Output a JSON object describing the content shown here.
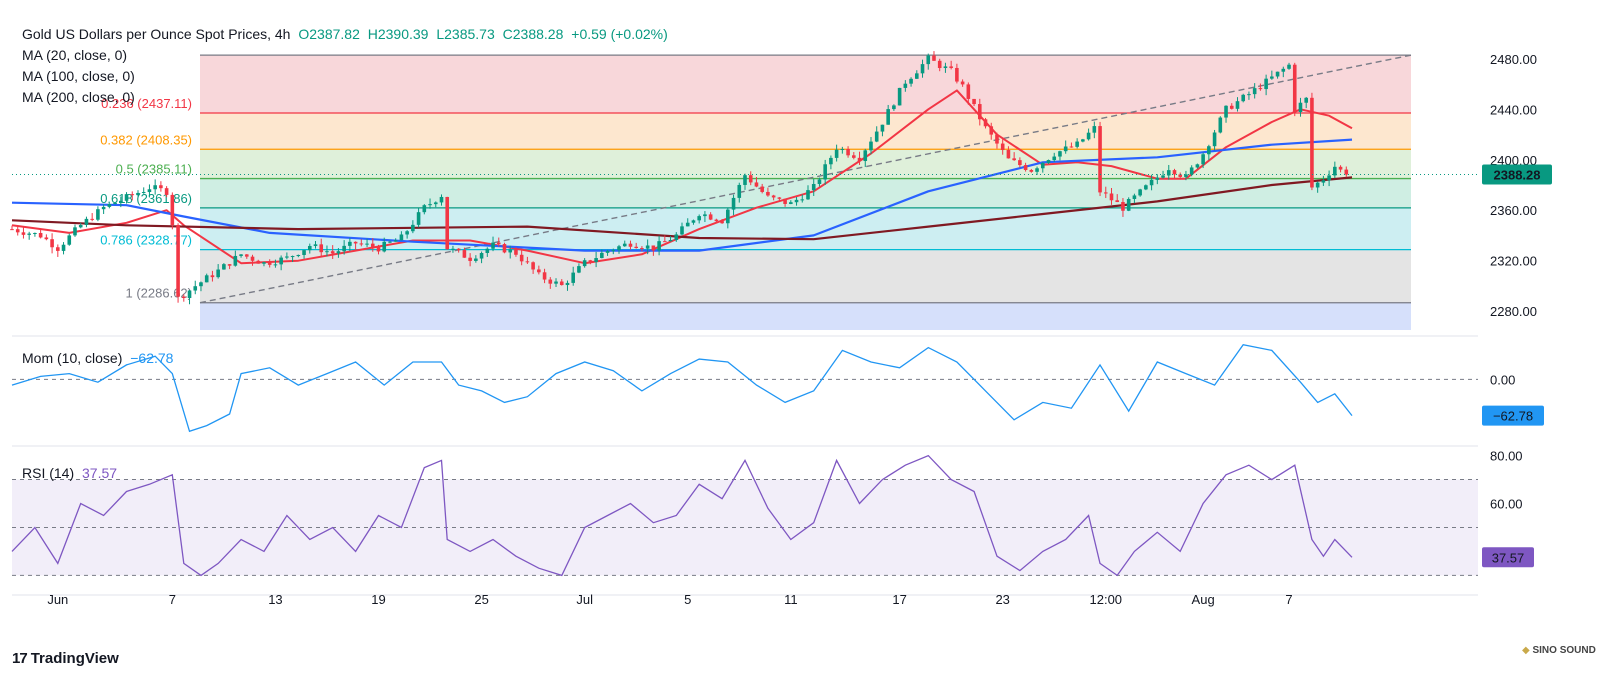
{
  "legend": {
    "title": "Gold US Dollars per Ounce Spot Prices, 4h",
    "open": "O2387.82",
    "high": "H2390.39",
    "low": "L2385.73",
    "close": "C2388.28",
    "change": "+0.59 (+0.02%)",
    "ma20": "MA (20, close, 0)",
    "ma100": "MA (100, close, 0)",
    "ma200": "MA (200, close, 0)"
  },
  "momentum_label": "Mom (10, close)",
  "momentum_value": "−62.78",
  "rsi_label": "RSI (14)",
  "rsi_value": "37.57",
  "price_badge": "2388.28",
  "brand": "TradingView",
  "watermark": "SINO SOUND",
  "colors": {
    "up": "#089981",
    "down": "#f23645",
    "ma20": "#f23645",
    "ma100": "#2962ff",
    "ma200": "#801922",
    "momentum": "#2196f3",
    "rsi": "#7e57c2",
    "price_badge": "#089981"
  },
  "chart_data": {
    "type": "candlestick",
    "timeframe": "4h",
    "ylim": [
      2265,
      2495
    ],
    "yticks": [
      "2480.00",
      "2440.00",
      "2400.00",
      "2360.00",
      "2320.00",
      "2280.00"
    ],
    "xticks": [
      "Jun",
      "7",
      "13",
      "19",
      "25",
      "Jul",
      "5",
      "11",
      "17",
      "23",
      "12:00",
      "Aug",
      "7"
    ],
    "fibonacci": [
      {
        "level": "0",
        "price": 2483,
        "label": ""
      },
      {
        "level": "0.236",
        "price": 2437.11,
        "label": "0.236 (2437.11)"
      },
      {
        "level": "0.382",
        "price": 2408.35,
        "label": "0.382 (2408.35)"
      },
      {
        "level": "0.5",
        "price": 2385.11,
        "label": "0.5 (2385.11)"
      },
      {
        "level": "0.618",
        "price": 2361.86,
        "label": "0.618 (2361.86)"
      },
      {
        "level": "0.786",
        "price": 2328.77,
        "label": "0.786 (2328.77)"
      },
      {
        "level": "1",
        "price": 2286.62,
        "label": "1 (2286.62)"
      }
    ],
    "close_path": [
      [
        0,
        2345
      ],
      [
        5,
        2340
      ],
      [
        8,
        2330
      ],
      [
        12,
        2348
      ],
      [
        16,
        2362
      ],
      [
        20,
        2370
      ],
      [
        24,
        2378
      ],
      [
        27,
        2375
      ],
      [
        28,
        2350
      ],
      [
        29,
        2290
      ],
      [
        32,
        2300
      ],
      [
        36,
        2312
      ],
      [
        40,
        2325
      ],
      [
        44,
        2318
      ],
      [
        48,
        2322
      ],
      [
        52,
        2332
      ],
      [
        56,
        2326
      ],
      [
        60,
        2334
      ],
      [
        64,
        2330
      ],
      [
        68,
        2338
      ],
      [
        72,
        2362
      ],
      [
        75,
        2372
      ],
      [
        76,
        2330
      ],
      [
        80,
        2322
      ],
      [
        84,
        2332
      ],
      [
        88,
        2326
      ],
      [
        92,
        2308
      ],
      [
        96,
        2300
      ],
      [
        100,
        2318
      ],
      [
        104,
        2328
      ],
      [
        108,
        2334
      ],
      [
        112,
        2330
      ],
      [
        116,
        2340
      ],
      [
        120,
        2358
      ],
      [
        124,
        2352
      ],
      [
        128,
        2388
      ],
      [
        132,
        2370
      ],
      [
        136,
        2365
      ],
      [
        140,
        2378
      ],
      [
        144,
        2410
      ],
      [
        148,
        2402
      ],
      [
        152,
        2430
      ],
      [
        156,
        2462
      ],
      [
        160,
        2480
      ],
      [
        164,
        2470
      ],
      [
        166,
        2458
      ],
      [
        170,
        2425
      ],
      [
        174,
        2400
      ],
      [
        178,
        2392
      ],
      [
        182,
        2405
      ],
      [
        186,
        2412
      ],
      [
        189,
        2425
      ],
      [
        190,
        2375
      ],
      [
        194,
        2362
      ],
      [
        198,
        2378
      ],
      [
        202,
        2394
      ],
      [
        205,
        2386
      ],
      [
        208,
        2405
      ],
      [
        212,
        2440
      ],
      [
        216,
        2452
      ],
      [
        220,
        2465
      ],
      [
        223,
        2475
      ],
      [
        224,
        2440
      ],
      [
        226,
        2448
      ],
      [
        227,
        2378
      ],
      [
        229,
        2385
      ],
      [
        231,
        2395
      ],
      [
        233,
        2388
      ]
    ],
    "series": [
      {
        "name": "MA (20, close, 0)",
        "color": "#f23645",
        "points": [
          [
            0,
            2348
          ],
          [
            10,
            2342
          ],
          [
            20,
            2350
          ],
          [
            27,
            2360
          ],
          [
            30,
            2348
          ],
          [
            40,
            2318
          ],
          [
            50,
            2320
          ],
          [
            60,
            2328
          ],
          [
            70,
            2336
          ],
          [
            80,
            2336
          ],
          [
            90,
            2328
          ],
          [
            100,
            2318
          ],
          [
            110,
            2325
          ],
          [
            120,
            2345
          ],
          [
            130,
            2362
          ],
          [
            140,
            2375
          ],
          [
            150,
            2405
          ],
          [
            160,
            2440
          ],
          [
            165,
            2455
          ],
          [
            172,
            2420
          ],
          [
            180,
            2396
          ],
          [
            186,
            2398
          ],
          [
            192,
            2395
          ],
          [
            200,
            2385
          ],
          [
            205,
            2385
          ],
          [
            212,
            2410
          ],
          [
            220,
            2430
          ],
          [
            225,
            2440
          ],
          [
            230,
            2435
          ],
          [
            234,
            2425
          ]
        ]
      },
      {
        "name": "MA (100, close, 0)",
        "color": "#2962ff",
        "points": [
          [
            0,
            2366
          ],
          [
            20,
            2364
          ],
          [
            30,
            2355
          ],
          [
            45,
            2342
          ],
          [
            70,
            2335
          ],
          [
            100,
            2328
          ],
          [
            120,
            2328
          ],
          [
            140,
            2340
          ],
          [
            160,
            2375
          ],
          [
            180,
            2398
          ],
          [
            200,
            2402
          ],
          [
            220,
            2412
          ],
          [
            234,
            2416
          ]
        ]
      },
      {
        "name": "MA (200, close, 0)",
        "color": "#801922",
        "points": [
          [
            0,
            2352
          ],
          [
            20,
            2348
          ],
          [
            50,
            2345
          ],
          [
            90,
            2347
          ],
          [
            120,
            2338
          ],
          [
            140,
            2337
          ],
          [
            160,
            2347
          ],
          [
            180,
            2357
          ],
          [
            200,
            2367
          ],
          [
            220,
            2380
          ],
          [
            234,
            2386
          ]
        ]
      }
    ],
    "momentum": {
      "name": "Mom (10, close)",
      "ylim": [
        -105,
        75
      ],
      "ytick": "0.00",
      "last": -62.78,
      "points": [
        [
          0,
          -10
        ],
        [
          5,
          5
        ],
        [
          10,
          10
        ],
        [
          15,
          -5
        ],
        [
          20,
          25
        ],
        [
          25,
          40
        ],
        [
          28,
          10
        ],
        [
          31,
          -90
        ],
        [
          34,
          -80
        ],
        [
          38,
          -60
        ],
        [
          40,
          10
        ],
        [
          45,
          20
        ],
        [
          50,
          -10
        ],
        [
          55,
          10
        ],
        [
          60,
          30
        ],
        [
          65,
          -10
        ],
        [
          70,
          30
        ],
        [
          75,
          30
        ],
        [
          78,
          -10
        ],
        [
          82,
          -20
        ],
        [
          86,
          -40
        ],
        [
          90,
          -30
        ],
        [
          95,
          10
        ],
        [
          100,
          30
        ],
        [
          105,
          15
        ],
        [
          110,
          -20
        ],
        [
          115,
          10
        ],
        [
          120,
          35
        ],
        [
          125,
          30
        ],
        [
          130,
          -10
        ],
        [
          135,
          -40
        ],
        [
          140,
          -20
        ],
        [
          145,
          50
        ],
        [
          150,
          30
        ],
        [
          155,
          20
        ],
        [
          160,
          55
        ],
        [
          165,
          30
        ],
        [
          170,
          -20
        ],
        [
          175,
          -70
        ],
        [
          180,
          -40
        ],
        [
          185,
          -50
        ],
        [
          190,
          25
        ],
        [
          195,
          -55
        ],
        [
          200,
          30
        ],
        [
          205,
          10
        ],
        [
          210,
          -10
        ],
        [
          215,
          60
        ],
        [
          220,
          50
        ],
        [
          225,
          -5
        ],
        [
          228,
          -40
        ],
        [
          231,
          -25
        ],
        [
          234,
          -62.78
        ]
      ]
    },
    "rsi": {
      "name": "RSI (14)",
      "ylim": [
        26,
        84
      ],
      "yticks": [
        "80.00",
        "60.00"
      ],
      "bands": [
        70,
        50,
        30
      ],
      "last": 37.57,
      "points": [
        [
          0,
          40
        ],
        [
          4,
          50
        ],
        [
          8,
          35
        ],
        [
          12,
          60
        ],
        [
          16,
          55
        ],
        [
          20,
          65
        ],
        [
          24,
          68
        ],
        [
          28,
          72
        ],
        [
          30,
          35
        ],
        [
          33,
          30
        ],
        [
          36,
          35
        ],
        [
          40,
          45
        ],
        [
          44,
          40
        ],
        [
          48,
          55
        ],
        [
          52,
          45
        ],
        [
          56,
          50
        ],
        [
          60,
          40
        ],
        [
          64,
          55
        ],
        [
          68,
          50
        ],
        [
          72,
          75
        ],
        [
          75,
          78
        ],
        [
          76,
          45
        ],
        [
          80,
          40
        ],
        [
          84,
          45
        ],
        [
          88,
          38
        ],
        [
          92,
          33
        ],
        [
          96,
          30
        ],
        [
          100,
          50
        ],
        [
          104,
          55
        ],
        [
          108,
          60
        ],
        [
          112,
          52
        ],
        [
          116,
          55
        ],
        [
          120,
          68
        ],
        [
          124,
          62
        ],
        [
          128,
          78
        ],
        [
          132,
          58
        ],
        [
          136,
          45
        ],
        [
          140,
          52
        ],
        [
          144,
          78
        ],
        [
          148,
          60
        ],
        [
          152,
          70
        ],
        [
          156,
          76
        ],
        [
          160,
          80
        ],
        [
          164,
          70
        ],
        [
          168,
          65
        ],
        [
          172,
          38
        ],
        [
          176,
          32
        ],
        [
          180,
          40
        ],
        [
          184,
          45
        ],
        [
          188,
          55
        ],
        [
          190,
          35
        ],
        [
          193,
          30
        ],
        [
          196,
          40
        ],
        [
          200,
          48
        ],
        [
          204,
          40
        ],
        [
          208,
          60
        ],
        [
          212,
          72
        ],
        [
          216,
          76
        ],
        [
          220,
          70
        ],
        [
          224,
          76
        ],
        [
          227,
          45
        ],
        [
          229,
          38
        ],
        [
          231,
          45
        ],
        [
          234,
          37.57
        ]
      ]
    }
  }
}
